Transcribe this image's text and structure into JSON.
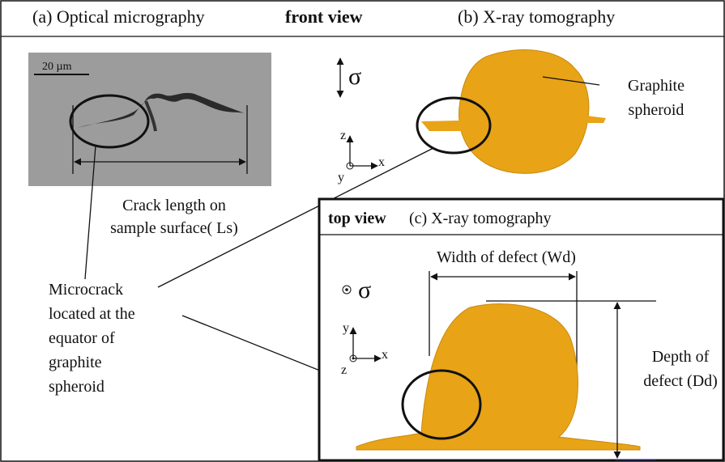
{
  "panel_a": {
    "label": "(a)  Optical micrography",
    "scale_bar": "20 µm",
    "crack_length": [
      "Crack length on",
      "sample surface( Ls)"
    ]
  },
  "view_front": "front view",
  "panel_b": {
    "label": "(b)  X-ray tomography",
    "stress": "σ",
    "axes": {
      "z": "z",
      "y": "y",
      "x": "x"
    },
    "graphite": [
      "Graphite",
      "spheroid"
    ]
  },
  "panel_c": {
    "view": "top view",
    "label": "(c)  X-ray tomography",
    "width": "Width of defect (Wd)",
    "stress": "σ",
    "axes": {
      "y": "y",
      "z": "z",
      "x": "x"
    },
    "depth": [
      "Depth of",
      "defect (Dd)"
    ]
  },
  "microcrack": [
    "Microcrack",
    "located at the",
    "equator of",
    "graphite",
    "spheroid"
  ]
}
